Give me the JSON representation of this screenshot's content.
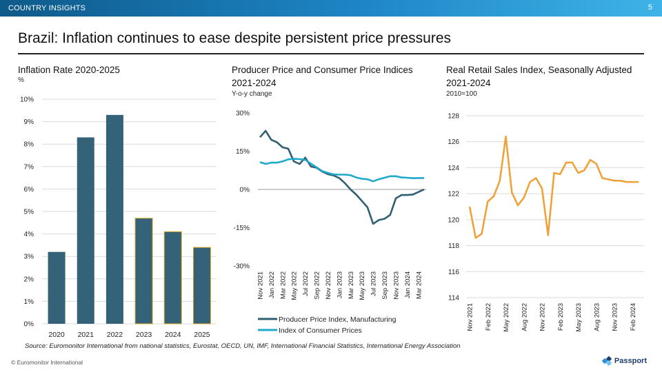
{
  "header": {
    "section": "COUNTRY INSIGHTS",
    "page_number": "5"
  },
  "page_title": "Brazil: Inflation continues to ease despite persistent price pressures",
  "source": "Source: Euromonitor International from national statistics, Eurostat, OECD, UN, IMF, International Financial Statistics, International Energy Association",
  "footer": {
    "copyright": "© Euromonitor  International",
    "brand": "Passport"
  },
  "colors": {
    "bar_dark": "#336279",
    "bar_outline_forecast": "#d9a521",
    "ppi_line": "#2f5f73",
    "cpi_line": "#1fa8c9",
    "retail_line": "#f0a23a"
  },
  "chart_data": [
    {
      "type": "bar",
      "title": "Inflation Rate 2020-2025",
      "unit": "%",
      "categories": [
        "2020",
        "2021",
        "2022",
        "2023",
        "2024",
        "2025"
      ],
      "values": [
        3.2,
        8.3,
        9.3,
        4.7,
        4.1,
        3.4
      ],
      "forecast_from": "2023",
      "ylim": [
        0,
        10
      ],
      "yticks": [
        "0%",
        "1%",
        "2%",
        "3%",
        "4%",
        "5%",
        "6%",
        "7%",
        "8%",
        "9%",
        "10%"
      ],
      "grid": true
    },
    {
      "type": "line",
      "title": "Producer Price and Consumer Price Indices 2021-2024",
      "unit": "Y-o-y change",
      "x_labels": [
        "Nov 2021",
        "Jan 2022",
        "Mar 2022",
        "May 2022",
        "Jul 2022",
        "Sep 2022",
        "Nov 2022",
        "Jan 2023",
        "Mar 2023",
        "May 2023",
        "Jul 2023",
        "Sep 2023",
        "Nov 2023",
        "Jan 2024",
        "Mar 2024"
      ],
      "ylim": [
        -30,
        30
      ],
      "yticks": [
        "-30%",
        "-15%",
        "0%",
        "15%",
        "30%"
      ],
      "legend_position": "bottom",
      "series": [
        {
          "name": "Producer Price Index, Manufacturing",
          "values": [
            20.5,
            23,
            19.5,
            18.5,
            16.5,
            16,
            11,
            10,
            12.5,
            9,
            8.5,
            7,
            6,
            5.5,
            4.5,
            2.5,
            0,
            -2,
            -4.5,
            -7,
            -13.5,
            -12,
            -11.5,
            -10,
            -3.5,
            -2.2,
            -2.2,
            -2,
            -1,
            0
          ]
        },
        {
          "name": "Index of Consumer Prices",
          "values": [
            10.7,
            10,
            10.5,
            10.5,
            11,
            11.8,
            12,
            11.9,
            11.6,
            10.1,
            8.7,
            7.2,
            6.5,
            5.9,
            5.8,
            5.8,
            5.6,
            4.7,
            4.2,
            4,
            3.2,
            4,
            4.6,
            5.2,
            5.2,
            4.7,
            4.6,
            4.4,
            4.5,
            4.5
          ]
        }
      ]
    },
    {
      "type": "line",
      "title": "Real Retail Sales Index, Seasonally Adjusted 2021-2024",
      "unit": "2010=100",
      "x_labels": [
        "Nov 2021",
        "Feb 2022",
        "May 2022",
        "Aug 2022",
        "Nov 2022",
        "Feb 2023",
        "May 2023",
        "Aug 2023",
        "Nov 2023",
        "Feb 2024"
      ],
      "ylim": [
        114,
        128
      ],
      "yticks": [
        "114",
        "116",
        "118",
        "120",
        "122",
        "124",
        "126",
        "128"
      ],
      "grid": true,
      "series": [
        {
          "name": "Real Retail Sales Index",
          "values": [
            121,
            118.6,
            118.9,
            121.4,
            121.8,
            123,
            126.4,
            122.1,
            121.1,
            121.7,
            122.9,
            123.2,
            122.4,
            118.8,
            123.6,
            123.5,
            124.4,
            124.4,
            123.6,
            123.8,
            124.6,
            124.3,
            123.2,
            123.1,
            123,
            123,
            122.9,
            122.9,
            122.9
          ]
        }
      ]
    }
  ]
}
